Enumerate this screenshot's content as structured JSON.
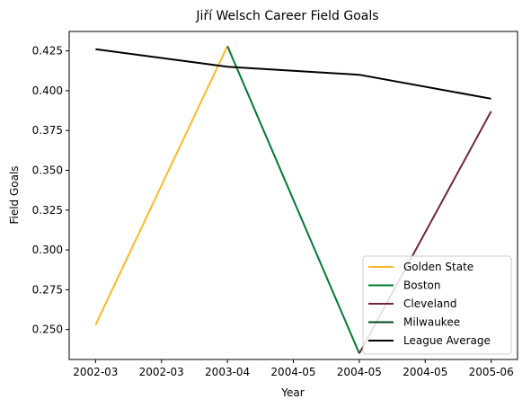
{
  "chart_data": {
    "type": "line",
    "title": "Jiří Welsch Career Field Goals",
    "xlabel": "Year",
    "ylabel": "Field Goals",
    "x_ticks": [
      "2002-03",
      "2002-03",
      "2003-04",
      "2004-05",
      "2004-05",
      "2004-05",
      "2005-06"
    ],
    "y_ticks": [
      0.25,
      0.275,
      0.3,
      0.325,
      0.35,
      0.375,
      0.4,
      0.425
    ],
    "y_tick_labels": [
      "0.250",
      "0.275",
      "0.300",
      "0.325",
      "0.350",
      "0.375",
      "0.400",
      "0.425"
    ],
    "xlim": [
      -0.2,
      3.2
    ],
    "ylim": [
      0.2312,
      0.4372
    ],
    "legend_position": "lower-right",
    "grid": false,
    "series": [
      {
        "name": "Golden State",
        "color": "#FDB927",
        "x": [
          0,
          1
        ],
        "y": [
          0.253,
          0.428
        ]
      },
      {
        "name": "Boston",
        "color": "#007A33",
        "x": [
          1,
          2
        ],
        "y": [
          0.428,
          0.235
        ]
      },
      {
        "name": "Cleveland",
        "color": "#6F263D",
        "x": [
          2,
          3
        ],
        "y": [
          0.235,
          0.387
        ]
      },
      {
        "name": "Milwaukee",
        "color": "#00471B",
        "x": [],
        "y": []
      },
      {
        "name": "League Average",
        "color": "#000000",
        "x": [
          0,
          1,
          2,
          3
        ],
        "y": [
          0.426,
          0.415,
          0.41,
          0.395
        ]
      }
    ]
  }
}
